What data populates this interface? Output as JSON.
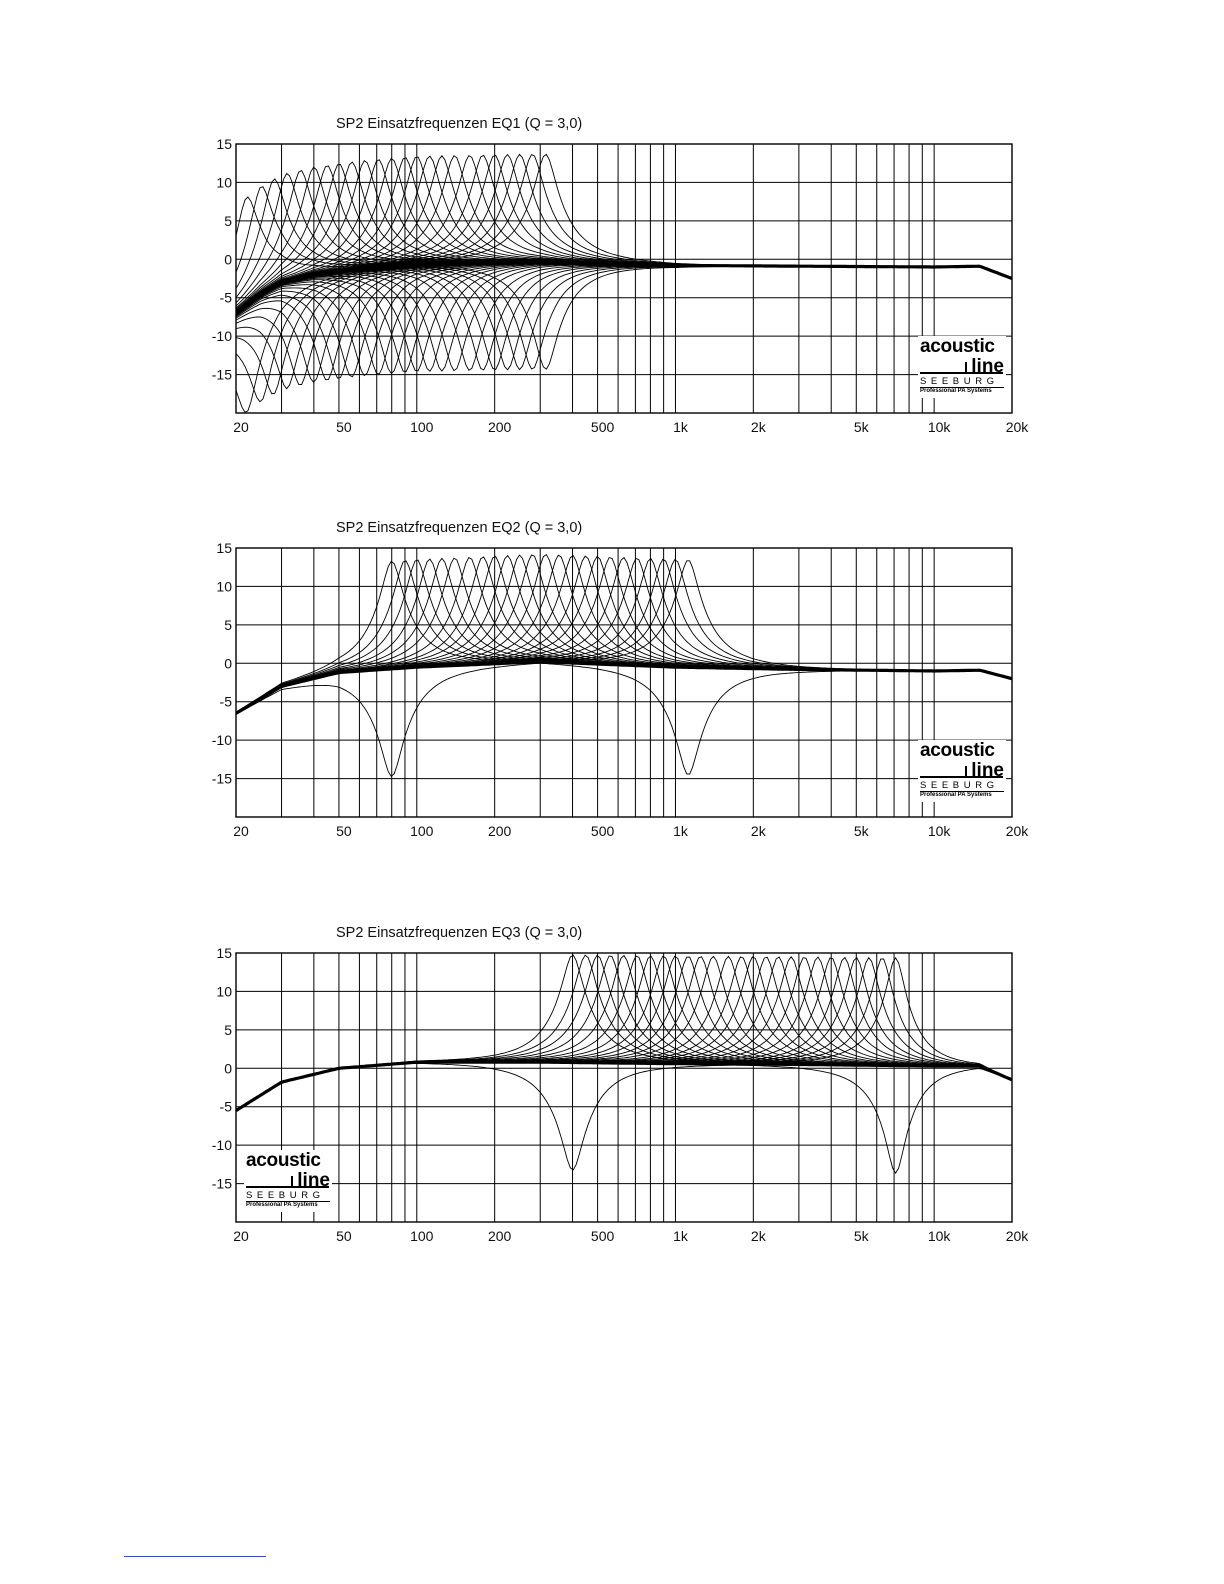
{
  "logo": {
    "line1": "acoustic",
    "line2": "line",
    "line3": "SEEBURG",
    "line4": "Professional PA Systems"
  },
  "axes": {
    "x_ticks": [
      20,
      50,
      100,
      200,
      500,
      1000,
      2000,
      5000,
      10000,
      20000
    ],
    "x_tick_labels": [
      "20",
      "50",
      "100",
      "200",
      "500",
      "1k",
      "2k",
      "5k",
      "10k",
      "20k"
    ],
    "y_ticks": [
      15,
      10,
      5,
      0,
      -5,
      -10,
      -15
    ],
    "y_tick_labels": [
      "15",
      "10",
      "5",
      "0",
      "-5",
      "-10",
      "-15"
    ],
    "xlim": [
      20,
      20000
    ],
    "ylim": [
      -20,
      15
    ],
    "x_scale": "log",
    "grid": true,
    "grid_color": "#000000"
  },
  "chart_data": [
    {
      "type": "line",
      "title": "SP2 Einsatzfrequenzen EQ1 (Q = 3,0)",
      "x_scale": "log",
      "xlim": [
        20,
        20000
      ],
      "ylim": [
        -20,
        15
      ],
      "logo_position": "bottom-right",
      "gain_db": 14,
      "q": 3.0,
      "boost_centers_hz": [
        22,
        25,
        28,
        31.5,
        35.5,
        40,
        45,
        50,
        56,
        63,
        71,
        80,
        90,
        100,
        112,
        125,
        140,
        160,
        180,
        200,
        224,
        250,
        280,
        315
      ],
      "cut_centers_hz": [
        22,
        25,
        28,
        31.5,
        35.5,
        40,
        45,
        50,
        56,
        63,
        71,
        80,
        90,
        100,
        112,
        125,
        140,
        160,
        180,
        200,
        224,
        250,
        280,
        315
      ],
      "baseline_points": [
        [
          20,
          -7
        ],
        [
          25,
          -4.5
        ],
        [
          30,
          -3
        ],
        [
          40,
          -2
        ],
        [
          60,
          -1.2
        ],
        [
          100,
          -0.6
        ],
        [
          300,
          -0.3
        ],
        [
          1000,
          -0.8
        ],
        [
          10000,
          -1
        ],
        [
          15000,
          -0.9
        ],
        [
          20000,
          -2.5
        ]
      ]
    },
    {
      "type": "line",
      "title": "SP2 Einsatzfrequenzen EQ2 (Q = 3,0)",
      "x_scale": "log",
      "xlim": [
        20,
        20000
      ],
      "ylim": [
        -20,
        15
      ],
      "logo_position": "bottom-right",
      "gain_db": 14,
      "q": 3.0,
      "boost_centers_hz": [
        80,
        90,
        100,
        112,
        125,
        140,
        160,
        180,
        200,
        224,
        250,
        280,
        315,
        355,
        400,
        450,
        500,
        560,
        630,
        710,
        800,
        900,
        1000,
        1120
      ],
      "cut_centers_hz": [
        80,
        1120
      ],
      "baseline_points": [
        [
          20,
          -6.5
        ],
        [
          30,
          -3
        ],
        [
          50,
          -1.2
        ],
        [
          100,
          -0.5
        ],
        [
          300,
          0.2
        ],
        [
          1000,
          -0.5
        ],
        [
          3000,
          -0.8
        ],
        [
          10000,
          -1
        ],
        [
          15000,
          -0.9
        ],
        [
          20000,
          -2
        ]
      ]
    },
    {
      "type": "line",
      "title": "SP2 Einsatzfrequenzen EQ3 (Q = 3,0)",
      "x_scale": "log",
      "xlim": [
        20,
        20000
      ],
      "ylim": [
        -20,
        15
      ],
      "logo_position": "bottom-left",
      "gain_db": 14,
      "q": 3.0,
      "boost_centers_hz": [
        400,
        450,
        500,
        560,
        630,
        710,
        800,
        900,
        1000,
        1120,
        1250,
        1400,
        1600,
        1800,
        2000,
        2240,
        2500,
        2800,
        3150,
        3550,
        4000,
        4500,
        5000,
        5600,
        6300,
        7100
      ],
      "cut_centers_hz": [
        400,
        7100
      ],
      "baseline_points": [
        [
          20,
          -5.5
        ],
        [
          30,
          -1.8
        ],
        [
          50,
          0
        ],
        [
          100,
          0.8
        ],
        [
          300,
          0.8
        ],
        [
          1000,
          0.6
        ],
        [
          3000,
          0.5
        ],
        [
          10000,
          0.3
        ],
        [
          15000,
          0.3
        ],
        [
          20000,
          -1.5
        ]
      ]
    }
  ]
}
